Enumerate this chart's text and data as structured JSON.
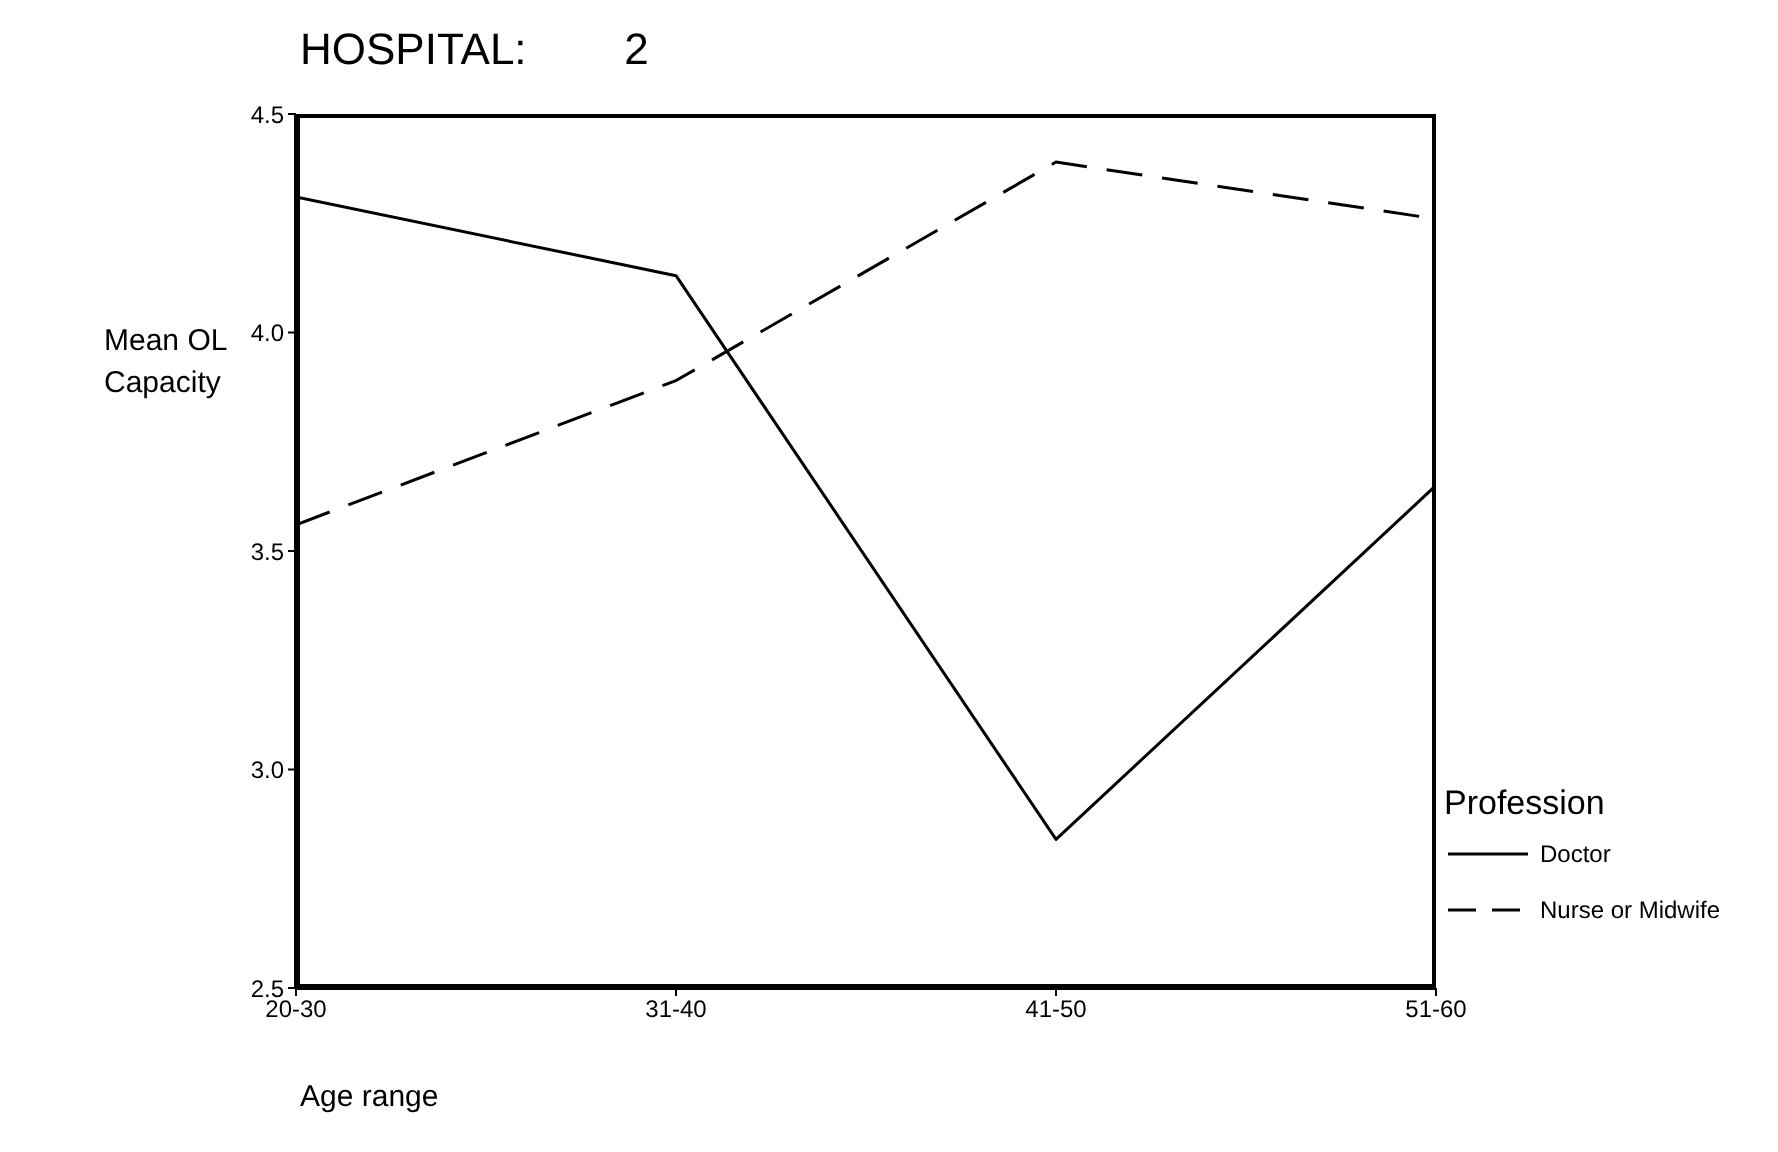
{
  "chart_data": {
    "type": "line",
    "title": "HOSPITAL:        2",
    "xlabel": "Age range",
    "ylabel": "Mean OL Capacity",
    "legend_title": "Profession",
    "categories": [
      "20-30",
      "31-40",
      "41-50",
      "51-60"
    ],
    "series": [
      {
        "name": "Doctor",
        "color": "#000000",
        "line_style": "solid",
        "values": [
          4.31,
          4.13,
          2.84,
          3.65
        ]
      },
      {
        "name": "Nurse or Midwife",
        "color": "#000000",
        "line_style": "dashed",
        "values": [
          3.56,
          3.89,
          4.39,
          4.26
        ]
      }
    ],
    "ylim": [
      2.5,
      4.5
    ],
    "yticks": [
      2.5,
      {
        "value": 3,
        "label": "3.0"
      },
      3.5,
      {
        "value": 4,
        "label": "4.0"
      },
      4.5
    ],
    "legend": "right",
    "marker": "none"
  }
}
